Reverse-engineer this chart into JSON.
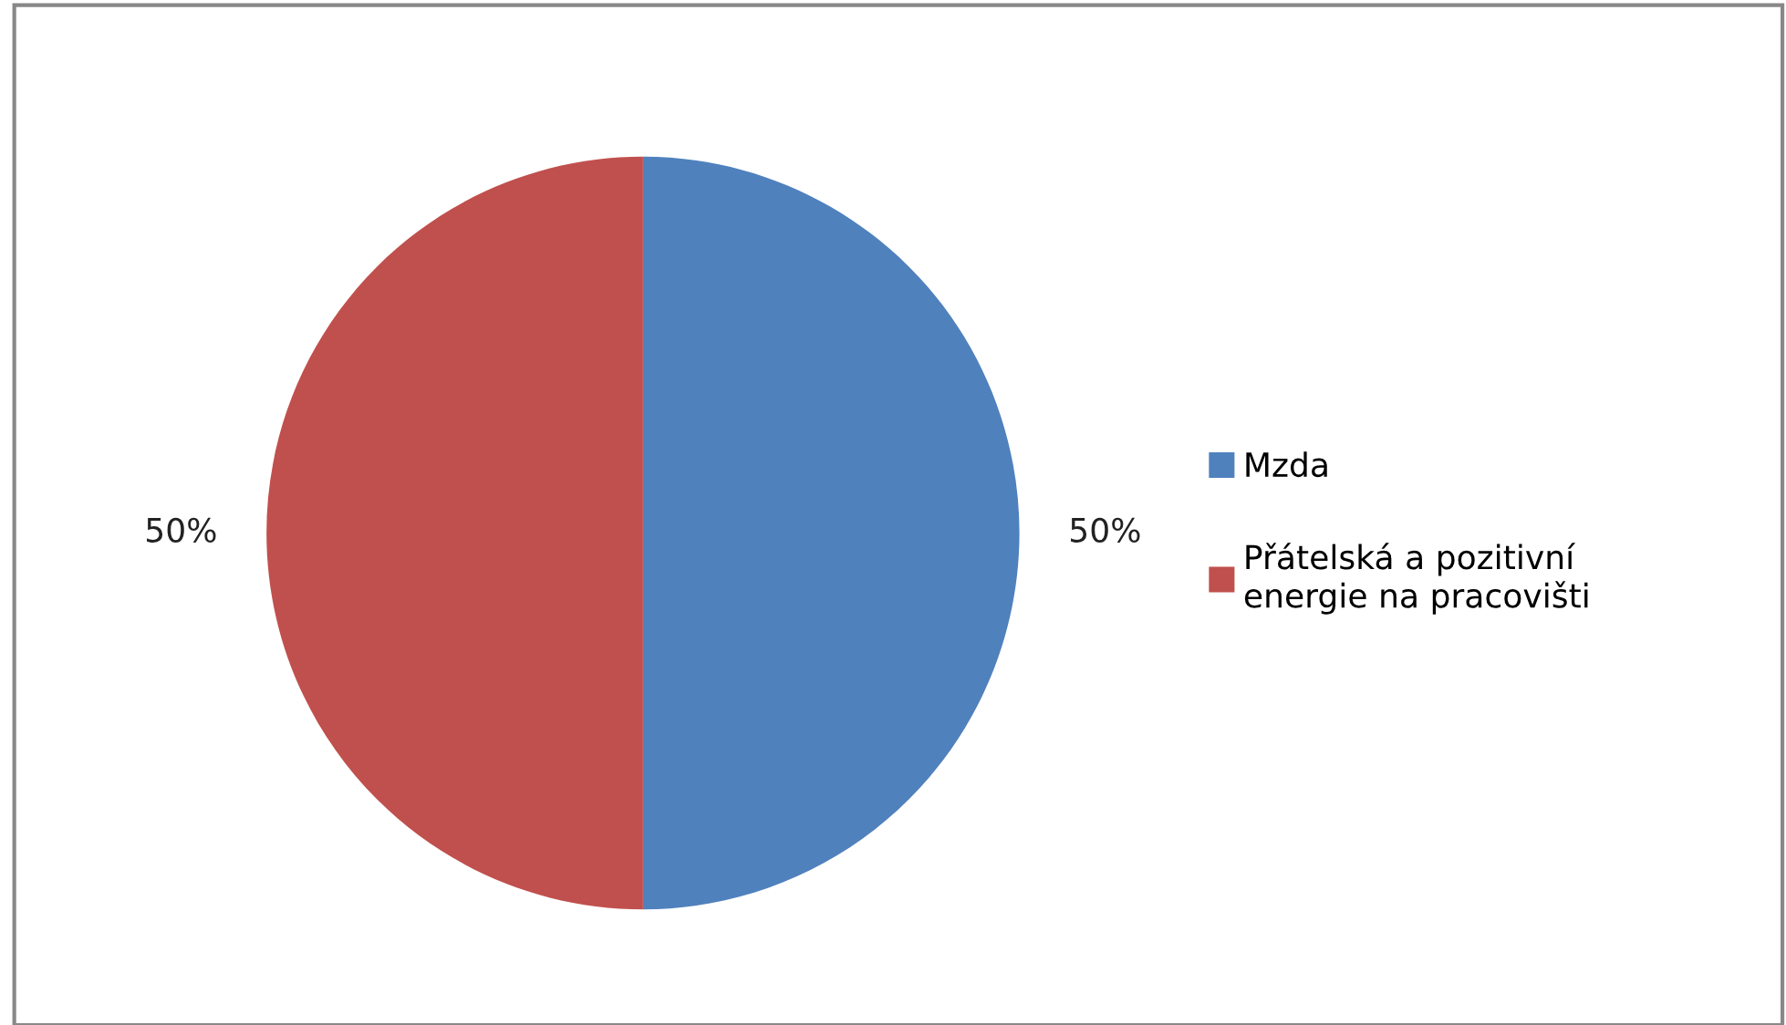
{
  "chart_data": {
    "type": "pie",
    "categories": [
      "Mzda",
      "Přátelská a pozitivní energie na pracovišti"
    ],
    "values": [
      50,
      50
    ],
    "colors": [
      "#4f81bd",
      "#c0504d"
    ],
    "value_labels": [
      "50%",
      "50%"
    ],
    "legend": "right"
  }
}
